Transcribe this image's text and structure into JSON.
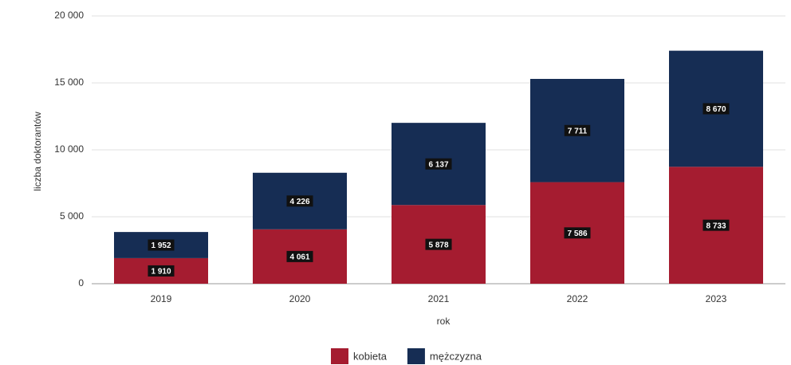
{
  "chart_data": {
    "type": "stacked_bar",
    "x_label": "rok",
    "y_label": "liczba doktorantów",
    "categories": [
      "2019",
      "2020",
      "2021",
      "2022",
      "2023"
    ],
    "series": [
      {
        "name": "kobieta",
        "color": "#a51c30",
        "values": [
          1910,
          4061,
          5878,
          7586,
          8733
        ],
        "value_labels": [
          "1 910",
          "4 061",
          "5 878",
          "7 586",
          "8 733"
        ]
      },
      {
        "name": "mężczyzna",
        "color": "#162d54",
        "values": [
          1952,
          4226,
          6137,
          7711,
          8670
        ],
        "value_labels": [
          "1 952",
          "4 226",
          "6 137",
          "7 711",
          "8 670"
        ]
      }
    ],
    "ylim": [
      0,
      20000
    ],
    "yticks": [
      0,
      {
        "value": 5000,
        "label": "5 000"
      },
      {
        "value": 10000,
        "label": "10 000"
      },
      {
        "value": 15000,
        "label": "15 000"
      },
      {
        "value": 20000,
        "label": "20 000"
      }
    ],
    "grid": true,
    "legend": "bottom"
  }
}
